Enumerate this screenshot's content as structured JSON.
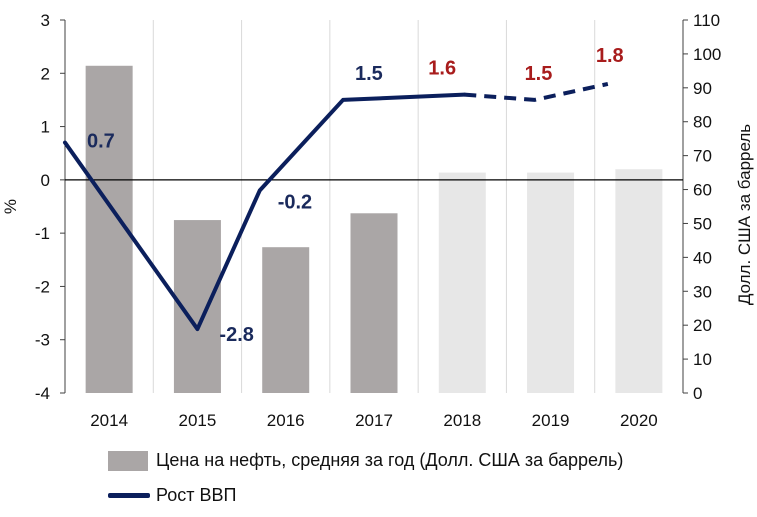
{
  "chart_data": {
    "type": "bar+line",
    "categories": [
      "2014",
      "2015",
      "2016",
      "2017",
      "2018",
      "2019",
      "2020"
    ],
    "bars": {
      "name": "Цена на нефть, средняя за год (Долл. США за баррель)",
      "values": [
        96.5,
        51,
        43,
        53,
        65,
        65,
        66
      ],
      "colors": [
        "#aaa6a6",
        "#aaa6a6",
        "#aaa6a6",
        "#aaa6a6",
        "#e7e7e7",
        "#e7e7e7",
        "#e7e7e7"
      ]
    },
    "line": {
      "name": "Рост ВВП",
      "values": [
        0.7,
        -2.8,
        -0.2,
        1.5,
        1.6,
        1.5,
        1.8
      ],
      "labels": [
        "0.7",
        "-2.8",
        "-0.2",
        "1.5",
        "1.6",
        "1.5",
        "1.8"
      ],
      "label_colors": [
        "#1a2a5c",
        "#1a2a5c",
        "#1a2a5c",
        "#1a2a5c",
        "#a81c1c",
        "#a81c1c",
        "#a81c1c"
      ],
      "forecast_from_index": 4,
      "color": "#0b1f5c"
    },
    "y_left": {
      "label": "%",
      "range": [
        -4,
        3
      ],
      "ticks": [
        "3",
        "2",
        "1",
        "0",
        "-1",
        "-2",
        "-3",
        "-4"
      ]
    },
    "y_right": {
      "label": "Долл. США за баррель",
      "range": [
        0,
        110
      ],
      "ticks": [
        "110",
        "100",
        "90",
        "80",
        "70",
        "60",
        "50",
        "40",
        "30",
        "20",
        "10",
        "0"
      ]
    },
    "grid": "vertical"
  }
}
